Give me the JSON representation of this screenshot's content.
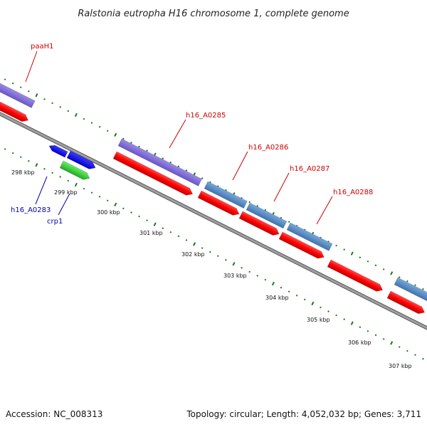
{
  "title": "Ralstonia eutropha H16 chromosome 1, complete genome",
  "footer": {
    "accession": "Accession: NC_008313",
    "summary": "Topology: circular; Length: 4,052,032 bp; Genes: 3,711"
  },
  "gene_labels": {
    "paaH1": "paaH1",
    "h16_A0285": "h16_A0285",
    "h16_A0286": "h16_A0286",
    "h16_A0287": "h16_A0287",
    "h16_A0288": "h16_A0288",
    "h16_A0283": "h16_A0283",
    "crp1": "crp1"
  },
  "scale_labels": [
    "298 kbp",
    "299 kbp",
    "300 kbp",
    "301 kbp",
    "302 kbp",
    "303 kbp",
    "304 kbp",
    "305 kbp",
    "306 kbp",
    "307 kbp"
  ],
  "colors": {
    "backbone": "#888888",
    "tick": "#1a7a1a",
    "cds_forward": "#ff0000",
    "purple_gene": "#7b68d8",
    "steelblue_gene": "#4f86c6",
    "blue_gene": "#0000ee",
    "green_gene": "#33cc33",
    "label_forward": "#cc0000",
    "label_reverse": "#0000aa"
  }
}
